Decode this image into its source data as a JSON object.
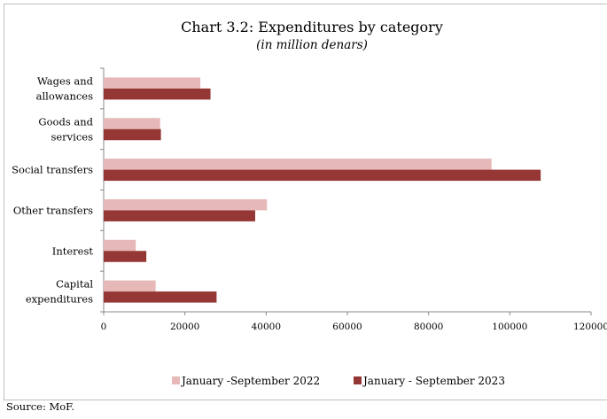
{
  "chart_data": {
    "type": "bar",
    "orientation": "horizontal",
    "title": "Chart 3.2: Expenditures by category",
    "subtitle": "(in million denars)",
    "categories": [
      [
        "Wages and",
        "allowances"
      ],
      [
        "Goods and",
        "services"
      ],
      [
        "Social transfers"
      ],
      [
        "Other transfers"
      ],
      [
        "Interest"
      ],
      [
        "Capital",
        "expenditures"
      ]
    ],
    "series": [
      {
        "name": "January -September 2022",
        "color": "#e6b9b8",
        "values": [
          23800,
          13900,
          95500,
          40200,
          7900,
          12800
        ]
      },
      {
        "name": "January - September 2023",
        "color": "#953735",
        "values": [
          26300,
          14100,
          107600,
          37300,
          10500,
          27800
        ]
      }
    ],
    "xlim": [
      0,
      120000
    ],
    "xticks": [
      "0",
      "20000",
      "40000",
      "60000",
      "80000",
      "100000",
      "120000"
    ],
    "grid": false,
    "legend": "bottom"
  },
  "source": "Source: MoF."
}
